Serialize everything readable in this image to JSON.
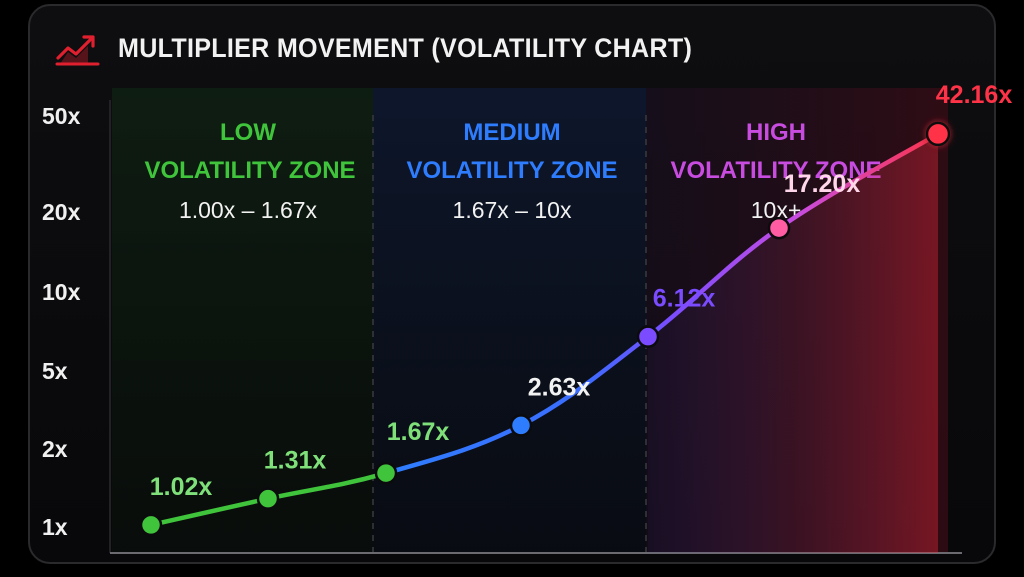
{
  "title": "MULTIPLIER MOVEMENT (VOLATILITY CHART)",
  "icon": "trending-up-chart-icon",
  "colors": {
    "low": "#3fc43b",
    "medium": "#2f7dff",
    "high": "#c84ce0",
    "peak": "#ff3347",
    "purple": "#7b4cff",
    "pink": "#ff5ca4"
  },
  "zones": [
    {
      "line1": "LOW",
      "line2": "VOLATILITY ZONE",
      "range": "1.00x – 1.67x"
    },
    {
      "line1": "MEDIUM",
      "line2": "VOLATILITY ZONE",
      "range": "1.67x – 10x"
    },
    {
      "line1": "HIGH",
      "line2": "VOLATILITY ZONE",
      "range": "10x+"
    }
  ],
  "chart_data": {
    "type": "line",
    "title": "MULTIPLIER MOVEMENT (VOLATILITY CHART)",
    "y_scale": "log",
    "ylim": [
      1,
      50
    ],
    "y_ticks": [
      1,
      2,
      5,
      10,
      20,
      50
    ],
    "y_tick_labels": [
      "1x",
      "2x",
      "5x",
      "10x",
      "20x",
      "50x"
    ],
    "grid": false,
    "series": [
      {
        "values": [
          1.02,
          1.31,
          1.67,
          2.63,
          6.12,
          17.2,
          42.16
        ],
        "labels": [
          "1.02x",
          "1.31x",
          "1.67x",
          "2.63x",
          "6.12x",
          "17.20x",
          "42.16x"
        ]
      }
    ]
  }
}
